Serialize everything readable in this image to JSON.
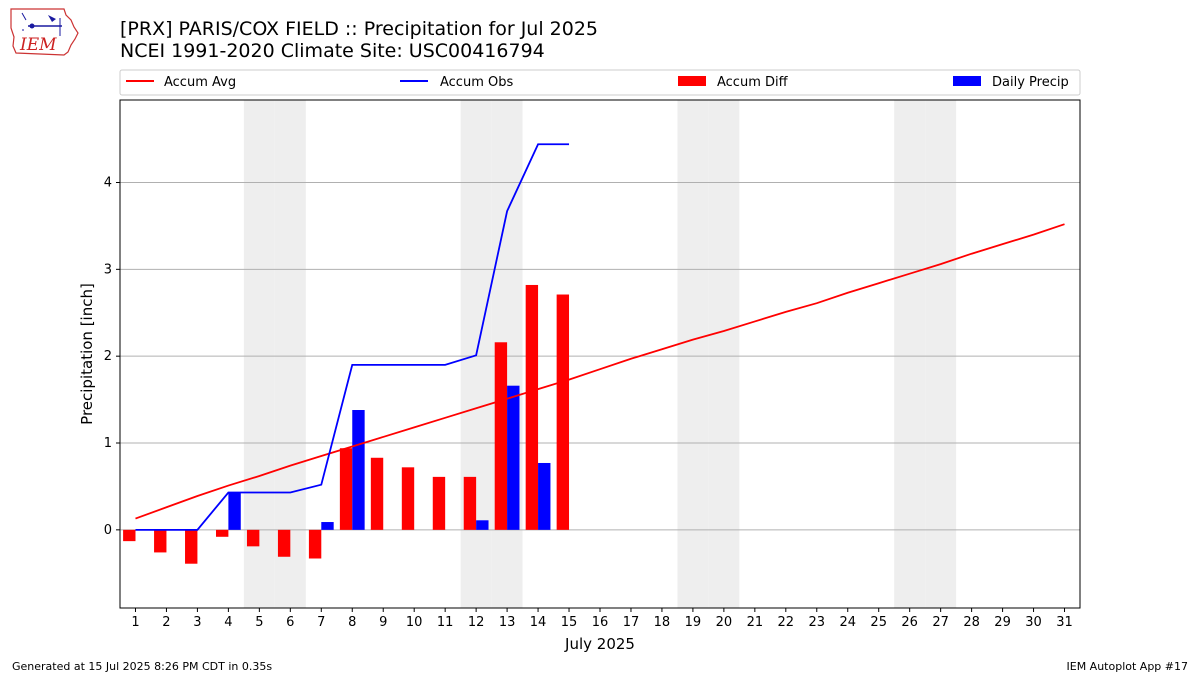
{
  "logo_text": "IEM",
  "chart_data": {
    "type": "bar",
    "title": "[PRX] PARIS/COX FIELD :: Precipitation for Jul 2025",
    "subtitle": "NCEI 1991-2020 Climate Site: USC00416794",
    "xlabel": "July 2025",
    "ylabel": "Precipitation [inch]",
    "ylim": [
      -0.9,
      4.95
    ],
    "yticks": [
      0,
      1,
      2,
      3,
      4
    ],
    "x": [
      1,
      2,
      3,
      4,
      5,
      6,
      7,
      8,
      9,
      10,
      11,
      12,
      13,
      14,
      15,
      16,
      17,
      18,
      19,
      20,
      21,
      22,
      23,
      24,
      25,
      26,
      27,
      28,
      29,
      30,
      31
    ],
    "weekend_days": [
      5,
      6,
      12,
      13,
      19,
      20,
      26,
      27
    ],
    "grid": "horizontal",
    "legend_position": "top",
    "series": [
      {
        "name": "Accum Avg",
        "kind": "line",
        "color": "#ff0000",
        "x": [
          1,
          2,
          3,
          4,
          5,
          6,
          7,
          8,
          9,
          10,
          11,
          12,
          13,
          14,
          15,
          16,
          17,
          18,
          19,
          20,
          21,
          22,
          23,
          24,
          25,
          26,
          27,
          28,
          29,
          30,
          31
        ],
        "values": [
          0.13,
          0.26,
          0.39,
          0.51,
          0.62,
          0.74,
          0.85,
          0.96,
          1.07,
          1.18,
          1.29,
          1.4,
          1.51,
          1.62,
          1.73,
          1.85,
          1.97,
          2.08,
          2.19,
          2.29,
          2.4,
          2.51,
          2.61,
          2.73,
          2.84,
          2.95,
          3.06,
          3.18,
          3.29,
          3.4,
          3.52
        ]
      },
      {
        "name": "Accum Obs",
        "kind": "line",
        "color": "#0000ff",
        "x": [
          1,
          2,
          3,
          4,
          5,
          6,
          7,
          8,
          9,
          10,
          11,
          12,
          13,
          14,
          15
        ],
        "values": [
          0.0,
          0.0,
          0.0,
          0.43,
          0.43,
          0.43,
          0.52,
          1.9,
          1.9,
          1.9,
          1.9,
          2.01,
          3.67,
          4.44,
          4.44
        ]
      },
      {
        "name": "Accum Diff",
        "kind": "bar",
        "color": "#ff0000",
        "x": [
          1,
          2,
          3,
          4,
          5,
          6,
          7,
          8,
          9,
          10,
          11,
          12,
          13,
          14,
          15
        ],
        "values": [
          -0.13,
          -0.26,
          -0.39,
          -0.08,
          -0.19,
          -0.31,
          -0.33,
          0.94,
          0.83,
          0.72,
          0.61,
          0.61,
          2.16,
          2.82,
          2.71
        ]
      },
      {
        "name": "Daily Precip",
        "kind": "bar",
        "color": "#0000ff",
        "x": [
          1,
          2,
          3,
          4,
          5,
          6,
          7,
          8,
          9,
          10,
          11,
          12,
          13,
          14,
          15
        ],
        "values": [
          0,
          0,
          0,
          0.43,
          0,
          0,
          0.09,
          1.38,
          0,
          0,
          0,
          0.11,
          1.66,
          0.77,
          0
        ]
      }
    ]
  },
  "footer": {
    "left": "Generated at 15 Jul 2025 8:26 PM CDT in 0.35s",
    "right": "IEM Autoplot App #17"
  },
  "colors": {
    "weekend_shade": "#eeeeee",
    "grid": "#b0b0b0",
    "accum_avg": "#ff0000",
    "accum_obs": "#0000ff",
    "accum_diff": "#ff0000",
    "daily_precip": "#0000ff"
  }
}
